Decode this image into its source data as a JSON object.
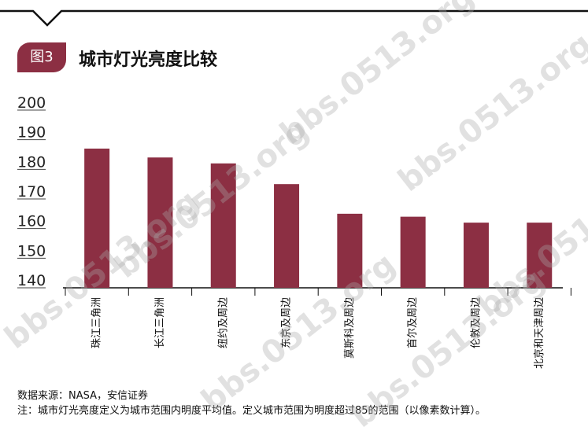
{
  "badge": "图3",
  "title": "城市灯光亮度比较",
  "chart_data": {
    "type": "bar",
    "categories": [
      "珠江三角洲",
      "长江三角洲",
      "纽约及周边",
      "东京及周边",
      "莫斯科及周边",
      "首尔及周边",
      "伦敦及周边",
      "北京和天津周边"
    ],
    "values": [
      187,
      184,
      182,
      175,
      165,
      164,
      162,
      162
    ],
    "ylim": [
      140,
      200
    ],
    "yticks": [
      140,
      150,
      160,
      170,
      180,
      190,
      200
    ],
    "bar_color": "#8c2f43",
    "grid": false,
    "title": "城市灯光亮度比较"
  },
  "footer": {
    "source": "数据来源：NASA，安信证券",
    "note": "注：城市灯光亮度定义为城市范围内明度平均值。定义城市范围为明度超过85的范围（以像素数计算）。"
  },
  "watermark": "bbs.0513.org"
}
